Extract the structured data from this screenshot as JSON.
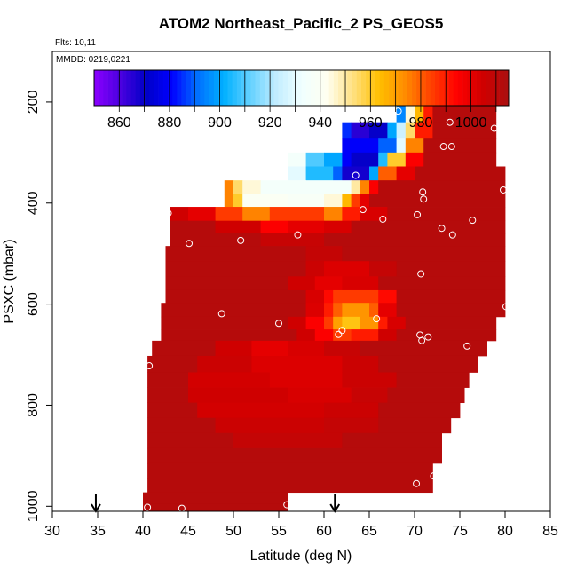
{
  "chart_data": {
    "type": "heatmap",
    "title": "ATOM2 Northeast_Pacific_2 PS_GEOS5",
    "subtitle_flights": "Flts: 10,11",
    "subtitle_dates": "MMDD: 0219,0221",
    "xlabel": "Latitude (deg N)",
    "ylabel": "PSXC (mbar)",
    "xlim": [
      30,
      85
    ],
    "ylim": [
      1010,
      100
    ],
    "x_ticks": [
      "30",
      "35",
      "40",
      "45",
      "50",
      "55",
      "60",
      "65",
      "70",
      "75",
      "80",
      "85"
    ],
    "y_ticks": [
      "200",
      "400",
      "600",
      "800",
      "1000"
    ],
    "colorbar": {
      "min": 850,
      "max": 1015,
      "tick_labels": [
        "860",
        "880",
        "900",
        "920",
        "940",
        "960",
        "980",
        "1000"
      ],
      "colors": [
        "#8b00ff",
        "#4b00e0",
        "#0000c8",
        "#0000ff",
        "#0070ff",
        "#00b0ff",
        "#60d0ff",
        "#c0ecff",
        "#f0ffff",
        "#fffff0",
        "#ffe080",
        "#ffc000",
        "#ff8c00",
        "#ff4000",
        "#ff0000",
        "#d00000",
        "#aa1010"
      ]
    },
    "markers_arrows_x": [
      34.8,
      61.2
    ],
    "rows": [
      {
        "p": 220,
        "lat0": 68,
        "lat1": 79,
        "segments": [
          [
            68,
            69,
            895
          ],
          [
            69,
            70,
            945
          ],
          [
            70,
            71,
            965
          ],
          [
            71,
            72,
            990
          ],
          [
            72,
            79,
            1012
          ]
        ]
      },
      {
        "p": 260,
        "lat0": 62,
        "lat1": 79,
        "segments": [
          [
            62,
            63,
            885
          ],
          [
            63,
            65,
            865
          ],
          [
            65,
            67,
            870
          ],
          [
            67,
            68,
            900
          ],
          [
            68,
            69,
            925
          ],
          [
            69,
            70,
            955
          ],
          [
            70,
            72,
            990
          ],
          [
            72,
            79,
            1012
          ]
        ]
      },
      {
        "p": 285,
        "lat0": 62,
        "lat1": 79,
        "segments": [
          [
            62,
            66,
            880
          ],
          [
            66,
            68,
            890
          ],
          [
            68,
            69,
            930
          ],
          [
            69,
            71,
            975
          ],
          [
            71,
            79,
            1012
          ]
        ]
      },
      {
        "p": 315,
        "lat0": 56,
        "lat1": 79,
        "segments": [
          [
            56,
            58,
            935
          ],
          [
            58,
            60,
            910
          ],
          [
            60,
            62,
            900
          ],
          [
            62,
            63,
            880
          ],
          [
            63,
            66,
            870
          ],
          [
            66,
            67,
            905
          ],
          [
            67,
            69,
            960
          ],
          [
            69,
            71,
            995
          ],
          [
            71,
            79,
            1012
          ]
        ]
      },
      {
        "p": 340,
        "lat0": 56,
        "lat1": 80,
        "segments": [
          [
            56,
            58,
            930
          ],
          [
            58,
            61,
            905
          ],
          [
            61,
            62,
            890
          ],
          [
            62,
            65,
            868
          ],
          [
            65,
            66,
            900
          ],
          [
            66,
            68,
            980
          ],
          [
            68,
            70,
            1000
          ],
          [
            70,
            80,
            1012
          ]
        ]
      },
      {
        "p": 370,
        "lat0": 49,
        "lat1": 80,
        "segments": [
          [
            49,
            50,
            975
          ],
          [
            50,
            51,
            955
          ],
          [
            51,
            53,
            945
          ],
          [
            53,
            58,
            935
          ],
          [
            58,
            63,
            935
          ],
          [
            63,
            64,
            950
          ],
          [
            64,
            65,
            975
          ],
          [
            65,
            66,
            995
          ],
          [
            66,
            80,
            1012
          ]
        ]
      },
      {
        "p": 395,
        "lat0": 49,
        "lat1": 80,
        "segments": [
          [
            49,
            50,
            975
          ],
          [
            50,
            51,
            960
          ],
          [
            51,
            56,
            940
          ],
          [
            56,
            60,
            938
          ],
          [
            60,
            62,
            945
          ],
          [
            62,
            63,
            965
          ],
          [
            63,
            64,
            985
          ],
          [
            64,
            65,
            1000
          ],
          [
            65,
            80,
            1012
          ]
        ]
      },
      {
        "p": 420,
        "lat0": 43,
        "lat1": 80,
        "segments": [
          [
            43,
            45,
            1005
          ],
          [
            45,
            48,
            1000
          ],
          [
            48,
            51,
            985
          ],
          [
            51,
            54,
            975
          ],
          [
            54,
            56,
            985
          ],
          [
            56,
            60,
            985
          ],
          [
            60,
            62,
            975
          ],
          [
            62,
            64,
            990
          ],
          [
            64,
            67,
            1003
          ],
          [
            67,
            80,
            1012
          ]
        ]
      },
      {
        "p": 450,
        "lat0": 43,
        "lat1": 80,
        "segments": [
          [
            43,
            48,
            1012
          ],
          [
            48,
            53,
            1005
          ],
          [
            53,
            56,
            995
          ],
          [
            56,
            60,
            1000
          ],
          [
            60,
            63,
            1003
          ],
          [
            63,
            80,
            1012
          ]
        ]
      },
      {
        "p": 470,
        "lat0": 43,
        "lat1": 80,
        "segments": [
          [
            43,
            53,
            1012
          ],
          [
            53,
            60,
            1007
          ],
          [
            60,
            80,
            1012
          ]
        ]
      },
      {
        "p": 500,
        "lat0": 42.5,
        "lat1": 80,
        "segments": [
          [
            42.5,
            58,
            1012
          ],
          [
            58,
            62,
            1008
          ],
          [
            62,
            80,
            1012
          ]
        ]
      },
      {
        "p": 530,
        "lat0": 42.5,
        "lat1": 80,
        "segments": [
          [
            42.5,
            58,
            1012
          ],
          [
            58,
            60,
            1006
          ],
          [
            60,
            65,
            1002
          ],
          [
            65,
            68,
            1008
          ],
          [
            68,
            80,
            1012
          ]
        ]
      },
      {
        "p": 560,
        "lat0": 42.5,
        "lat1": 80,
        "segments": [
          [
            42.5,
            56,
            1012
          ],
          [
            56,
            59,
            1005
          ],
          [
            59,
            62,
            1000
          ],
          [
            62,
            66,
            1003
          ],
          [
            66,
            80,
            1012
          ]
        ]
      },
      {
        "p": 585,
        "lat0": 42.5,
        "lat1": 80,
        "segments": [
          [
            42.5,
            58,
            1012
          ],
          [
            58,
            60,
            1003
          ],
          [
            60,
            61,
            993
          ],
          [
            61,
            66,
            985
          ],
          [
            66,
            68,
            993
          ],
          [
            68,
            80,
            1012
          ]
        ]
      },
      {
        "p": 610,
        "lat0": 42,
        "lat1": 80,
        "segments": [
          [
            42,
            58,
            1012
          ],
          [
            58,
            60,
            1002
          ],
          [
            60,
            61,
            990
          ],
          [
            61,
            62,
            980
          ],
          [
            62,
            65,
            972
          ],
          [
            65,
            66,
            980
          ],
          [
            66,
            68,
            1000
          ],
          [
            68,
            80,
            1012
          ]
        ]
      },
      {
        "p": 640,
        "lat0": 42,
        "lat1": 79,
        "segments": [
          [
            42,
            56,
            1012
          ],
          [
            56,
            58,
            1005
          ],
          [
            58,
            60,
            995
          ],
          [
            60,
            61,
            985
          ],
          [
            61,
            62,
            970
          ],
          [
            62,
            64,
            962
          ],
          [
            64,
            66,
            972
          ],
          [
            66,
            67,
            990
          ],
          [
            67,
            69,
            1003
          ],
          [
            69,
            79,
            1012
          ]
        ]
      },
      {
        "p": 660,
        "lat0": 42,
        "lat1": 79,
        "segments": [
          [
            42,
            57,
            1012
          ],
          [
            57,
            59,
            1005
          ],
          [
            59,
            61,
            995
          ],
          [
            61,
            63,
            985
          ],
          [
            63,
            66,
            990
          ],
          [
            66,
            68,
            1005
          ],
          [
            68,
            79,
            1012
          ]
        ]
      },
      {
        "p": 685,
        "lat0": 41,
        "lat1": 78,
        "segments": [
          [
            41,
            48,
            1012
          ],
          [
            48,
            52,
            1005
          ],
          [
            52,
            56,
            1000
          ],
          [
            56,
            60,
            1003
          ],
          [
            60,
            64,
            1007
          ],
          [
            64,
            78,
            1012
          ]
        ]
      },
      {
        "p": 720,
        "lat0": 40.5,
        "lat1": 77,
        "segments": [
          [
            40.5,
            46,
            1012
          ],
          [
            46,
            52,
            1006
          ],
          [
            52,
            62,
            1002
          ],
          [
            62,
            66,
            1006
          ],
          [
            66,
            77,
            1012
          ]
        ]
      },
      {
        "p": 750,
        "lat0": 40.5,
        "lat1": 76,
        "segments": [
          [
            40.5,
            45,
            1012
          ],
          [
            45,
            54,
            1004
          ],
          [
            54,
            62,
            1002
          ],
          [
            62,
            68,
            1006
          ],
          [
            68,
            76,
            1012
          ]
        ]
      },
      {
        "p": 780,
        "lat0": 40.5,
        "lat1": 75.5,
        "segments": [
          [
            40.5,
            45,
            1012
          ],
          [
            45,
            56,
            1005
          ],
          [
            56,
            63,
            1003
          ],
          [
            63,
            67,
            1007
          ],
          [
            67,
            75.5,
            1012
          ]
        ]
      },
      {
        "p": 810,
        "lat0": 40.5,
        "lat1": 75,
        "segments": [
          [
            40.5,
            46,
            1012
          ],
          [
            46,
            60,
            1004
          ],
          [
            60,
            66,
            1006
          ],
          [
            66,
            75,
            1012
          ]
        ]
      },
      {
        "p": 840,
        "lat0": 40.5,
        "lat1": 74,
        "segments": [
          [
            40.5,
            48,
            1012
          ],
          [
            48,
            60,
            1006
          ],
          [
            60,
            66,
            1008
          ],
          [
            66,
            74,
            1012
          ]
        ]
      },
      {
        "p": 870,
        "lat0": 40.5,
        "lat1": 73,
        "segments": [
          [
            40.5,
            50,
            1012
          ],
          [
            50,
            62,
            1008
          ],
          [
            62,
            73,
            1012
          ]
        ]
      },
      {
        "p": 900,
        "lat0": 40.5,
        "lat1": 73,
        "segments": [
          [
            40.5,
            73,
            1012
          ]
        ]
      },
      {
        "p": 930,
        "lat0": 40.5,
        "lat1": 72,
        "segments": [
          [
            40.5,
            72,
            1012
          ]
        ]
      },
      {
        "p": 960,
        "lat0": 40.5,
        "lat1": 72,
        "segments": [
          [
            40.5,
            72,
            1012
          ]
        ]
      },
      {
        "p": 985,
        "lat0": 40,
        "lat1": 56,
        "segments": [
          [
            40,
            56,
            1012
          ]
        ]
      },
      {
        "p": 1005,
        "lat0": 40,
        "lat1": 56,
        "segments": [
          [
            40,
            56,
            1012
          ]
        ]
      }
    ],
    "points": [
      [
        68.2,
        218
      ],
      [
        73.9,
        240
      ],
      [
        78.8,
        252
      ],
      [
        73.2,
        288
      ],
      [
        74.1,
        288
      ],
      [
        63.5,
        345
      ],
      [
        79.8,
        374
      ],
      [
        70.9,
        378
      ],
      [
        71.0,
        392
      ],
      [
        64.3,
        413
      ],
      [
        42.8,
        420
      ],
      [
        70.3,
        423
      ],
      [
        66.5,
        432
      ],
      [
        76.4,
        434
      ],
      [
        73.0,
        450
      ],
      [
        57.1,
        463
      ],
      [
        74.2,
        463
      ],
      [
        50.8,
        474
      ],
      [
        45.1,
        480
      ],
      [
        70.7,
        540
      ],
      [
        80.1,
        605
      ],
      [
        48.7,
        619
      ],
      [
        65.8,
        629
      ],
      [
        55.0,
        638
      ],
      [
        62.0,
        652
      ],
      [
        61.6,
        660
      ],
      [
        70.6,
        661
      ],
      [
        71.5,
        665
      ],
      [
        70.8,
        672
      ],
      [
        75.8,
        683
      ],
      [
        40.7,
        722
      ],
      [
        72.1,
        940
      ],
      [
        70.2,
        955
      ],
      [
        55.9,
        997
      ],
      [
        40.5,
        1002
      ],
      [
        44.3,
        1004
      ]
    ]
  }
}
